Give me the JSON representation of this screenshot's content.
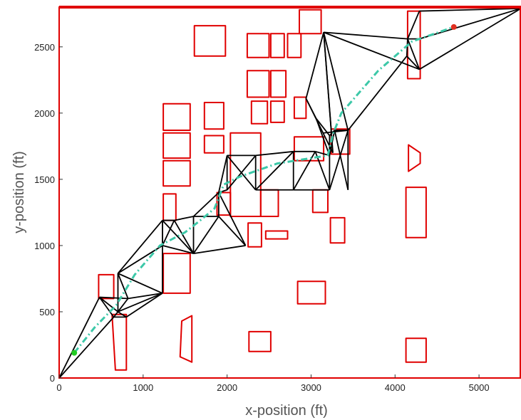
{
  "chart_data": {
    "type": "scatter",
    "title": "",
    "xlabel": "x-position (ft)",
    "ylabel": "y-position (ft)",
    "xlim": [
      0,
      5500
    ],
    "ylim": [
      0,
      2800
    ],
    "xticks": [
      0,
      1000,
      2000,
      3000,
      4000,
      5000
    ],
    "yticks": [
      0,
      500,
      1000,
      1500,
      2000,
      2500
    ],
    "grid": false,
    "colors": {
      "obstacles": "#e00000",
      "roadmap": "#000000",
      "path": "#3cc8a8",
      "start": "#22cc22",
      "goal": "#e03020",
      "frame": "#e00000"
    },
    "start": [
      180,
      190
    ],
    "goal": [
      4700,
      2650
    ],
    "obstacles": [
      [
        [
          470,
          780
        ],
        [
          650,
          780
        ],
        [
          650,
          600
        ],
        [
          470,
          600
        ]
      ],
      [
        [
          630,
          480
        ],
        [
          800,
          480
        ],
        [
          800,
          60
        ],
        [
          670,
          60
        ]
      ],
      [
        [
          1240,
          2070
        ],
        [
          1560,
          2070
        ],
        [
          1560,
          1870
        ],
        [
          1240,
          1870
        ]
      ],
      [
        [
          1240,
          1850
        ],
        [
          1560,
          1850
        ],
        [
          1560,
          1660
        ],
        [
          1240,
          1660
        ]
      ],
      [
        [
          1240,
          1640
        ],
        [
          1560,
          1640
        ],
        [
          1560,
          1450
        ],
        [
          1240,
          1450
        ]
      ],
      [
        [
          1240,
          1390
        ],
        [
          1390,
          1390
        ],
        [
          1390,
          1190
        ],
        [
          1240,
          1190
        ]
      ],
      [
        [
          1240,
          940
        ],
        [
          1560,
          940
        ],
        [
          1560,
          640
        ],
        [
          1240,
          640
        ]
      ],
      [
        [
          1460,
          430
        ],
        [
          1580,
          470
        ],
        [
          1580,
          120
        ],
        [
          1440,
          160
        ]
      ],
      [
        [
          1610,
          2660
        ],
        [
          1980,
          2660
        ],
        [
          1980,
          2430
        ],
        [
          1610,
          2430
        ]
      ],
      [
        [
          1730,
          2080
        ],
        [
          1960,
          2080
        ],
        [
          1960,
          1880
        ],
        [
          1730,
          1880
        ]
      ],
      [
        [
          1730,
          1830
        ],
        [
          1960,
          1830
        ],
        [
          1960,
          1700
        ],
        [
          1730,
          1700
        ]
      ],
      [
        [
          1880,
          1400
        ],
        [
          2040,
          1400
        ],
        [
          2040,
          1230
        ],
        [
          1880,
          1230
        ]
      ],
      [
        [
          2040,
          1850
        ],
        [
          2400,
          1850
        ],
        [
          2400,
          1220
        ],
        [
          2040,
          1220
        ]
      ],
      [
        [
          2240,
          2600
        ],
        [
          2500,
          2600
        ],
        [
          2500,
          2420
        ],
        [
          2240,
          2420
        ]
      ],
      [
        [
          2520,
          2600
        ],
        [
          2680,
          2600
        ],
        [
          2680,
          2420
        ],
        [
          2520,
          2420
        ]
      ],
      [
        [
          2720,
          2600
        ],
        [
          2880,
          2600
        ],
        [
          2880,
          2420
        ],
        [
          2720,
          2420
        ]
      ],
      [
        [
          2240,
          2320
        ],
        [
          2500,
          2320
        ],
        [
          2500,
          2120
        ],
        [
          2240,
          2120
        ]
      ],
      [
        [
          2520,
          2320
        ],
        [
          2700,
          2320
        ],
        [
          2700,
          2120
        ],
        [
          2520,
          2120
        ]
      ],
      [
        [
          2290,
          2090
        ],
        [
          2480,
          2090
        ],
        [
          2480,
          1920
        ],
        [
          2290,
          1920
        ]
      ],
      [
        [
          2520,
          2090
        ],
        [
          2680,
          2090
        ],
        [
          2680,
          1930
        ],
        [
          2520,
          1930
        ]
      ],
      [
        [
          2400,
          1420
        ],
        [
          2610,
          1420
        ],
        [
          2610,
          1220
        ],
        [
          2400,
          1220
        ]
      ],
      [
        [
          2250,
          1170
        ],
        [
          2410,
          1170
        ],
        [
          2410,
          990
        ],
        [
          2250,
          990
        ]
      ],
      [
        [
          2460,
          1110
        ],
        [
          2720,
          1110
        ],
        [
          2720,
          1050
        ],
        [
          2460,
          1050
        ]
      ],
      [
        [
          2260,
          350
        ],
        [
          2520,
          350
        ],
        [
          2520,
          200
        ],
        [
          2260,
          200
        ]
      ],
      [
        [
          2860,
          2780
        ],
        [
          3120,
          2780
        ],
        [
          3120,
          2600
        ],
        [
          2860,
          2600
        ]
      ],
      [
        [
          2800,
          2120
        ],
        [
          2940,
          2120
        ],
        [
          2940,
          1960
        ],
        [
          2800,
          1960
        ]
      ],
      [
        [
          2800,
          1820
        ],
        [
          3150,
          1820
        ],
        [
          3150,
          1640
        ],
        [
          2800,
          1640
        ]
      ],
      [
        [
          3020,
          1420
        ],
        [
          3200,
          1420
        ],
        [
          3200,
          1250
        ],
        [
          3020,
          1250
        ]
      ],
      [
        [
          3240,
          1880
        ],
        [
          3460,
          1880
        ],
        [
          3460,
          1690
        ],
        [
          3240,
          1690
        ]
      ],
      [
        [
          3230,
          1210
        ],
        [
          3400,
          1210
        ],
        [
          3400,
          1020
        ],
        [
          3230,
          1020
        ]
      ],
      [
        [
          2840,
          730
        ],
        [
          3170,
          730
        ],
        [
          3170,
          560
        ],
        [
          2840,
          560
        ]
      ],
      [
        [
          4150,
          2770
        ],
        [
          4300,
          2770
        ],
        [
          4300,
          2260
        ],
        [
          4150,
          2260
        ]
      ],
      [
        [
          4160,
          1760
        ],
        [
          4300,
          1700
        ],
        [
          4300,
          1620
        ],
        [
          4160,
          1560
        ]
      ],
      [
        [
          4130,
          1440
        ],
        [
          4370,
          1440
        ],
        [
          4370,
          1060
        ],
        [
          4130,
          1060
        ]
      ],
      [
        [
          4130,
          300
        ],
        [
          4370,
          300
        ],
        [
          4370,
          120
        ],
        [
          4130,
          120
        ]
      ]
    ],
    "edges": [
      [
        [
          0,
          0
        ],
        [
          480,
          610
        ]
      ],
      [
        [
          0,
          0
        ],
        [
          650,
          460
        ]
      ],
      [
        [
          480,
          610
        ],
        [
          650,
          460
        ]
      ],
      [
        [
          480,
          610
        ],
        [
          700,
          500
        ]
      ],
      [
        [
          480,
          610
        ],
        [
          820,
          600
        ]
      ],
      [
        [
          650,
          460
        ],
        [
          800,
          460
        ]
      ],
      [
        [
          650,
          460
        ],
        [
          700,
          500
        ]
      ],
      [
        [
          700,
          500
        ],
        [
          800,
          460
        ]
      ],
      [
        [
          700,
          500
        ],
        [
          700,
          790
        ]
      ],
      [
        [
          700,
          500
        ],
        [
          820,
          600
        ]
      ],
      [
        [
          700,
          500
        ],
        [
          1230,
          640
        ]
      ],
      [
        [
          700,
          790
        ],
        [
          820,
          600
        ]
      ],
      [
        [
          700,
          790
        ],
        [
          1230,
          640
        ]
      ],
      [
        [
          700,
          790
        ],
        [
          1230,
          1000
        ]
      ],
      [
        [
          700,
          790
        ],
        [
          1230,
          1190
        ]
      ],
      [
        [
          800,
          460
        ],
        [
          1230,
          640
        ]
      ],
      [
        [
          820,
          600
        ],
        [
          1230,
          640
        ]
      ],
      [
        [
          1230,
          640
        ],
        [
          1230,
          1190
        ]
      ],
      [
        [
          1230,
          1000
        ],
        [
          1230,
          1190
        ]
      ],
      [
        [
          1230,
          1000
        ],
        [
          1370,
          1190
        ]
      ],
      [
        [
          1230,
          1000
        ],
        [
          1600,
          940
        ]
      ],
      [
        [
          1230,
          1190
        ],
        [
          1370,
          1190
        ]
      ],
      [
        [
          1230,
          1190
        ],
        [
          1600,
          940
        ]
      ],
      [
        [
          1370,
          1190
        ],
        [
          1600,
          940
        ]
      ],
      [
        [
          1370,
          1190
        ],
        [
          1600,
          1220
        ]
      ],
      [
        [
          1600,
          940
        ],
        [
          1600,
          1220
        ]
      ],
      [
        [
          1600,
          940
        ],
        [
          1900,
          1220
        ]
      ],
      [
        [
          1600,
          940
        ],
        [
          2220,
          1000
        ]
      ],
      [
        [
          1600,
          1220
        ],
        [
          1900,
          1220
        ]
      ],
      [
        [
          1600,
          1220
        ],
        [
          1900,
          1400
        ]
      ],
      [
        [
          1900,
          1220
        ],
        [
          1900,
          1400
        ]
      ],
      [
        [
          1900,
          1220
        ],
        [
          2220,
          1000
        ]
      ],
      [
        [
          1900,
          1400
        ],
        [
          2220,
          1000
        ]
      ],
      [
        [
          1900,
          1400
        ],
        [
          2000,
          1420
        ]
      ],
      [
        [
          1900,
          1400
        ],
        [
          2000,
          1680
        ]
      ],
      [
        [
          2000,
          1420
        ],
        [
          2000,
          1680
        ]
      ],
      [
        [
          2000,
          1420
        ],
        [
          2340,
          1680
        ]
      ],
      [
        [
          2000,
          1680
        ],
        [
          2340,
          1680
        ]
      ],
      [
        [
          2000,
          1680
        ],
        [
          2340,
          1420
        ]
      ],
      [
        [
          2340,
          1420
        ],
        [
          2340,
          1680
        ]
      ],
      [
        [
          2340,
          1420
        ],
        [
          2790,
          1420
        ]
      ],
      [
        [
          2340,
          1420
        ],
        [
          2790,
          1710
        ]
      ],
      [
        [
          2340,
          1680
        ],
        [
          2790,
          1710
        ]
      ],
      [
        [
          2790,
          1420
        ],
        [
          2790,
          1710
        ]
      ],
      [
        [
          2790,
          1420
        ],
        [
          3050,
          1710
        ]
      ],
      [
        [
          2790,
          1420
        ],
        [
          3220,
          1420
        ]
      ],
      [
        [
          2790,
          1710
        ],
        [
          3050,
          1710
        ]
      ],
      [
        [
          3050,
          1710
        ],
        [
          3220,
          1420
        ]
      ],
      [
        [
          3050,
          1710
        ],
        [
          3220,
          1680
        ]
      ],
      [
        [
          3220,
          1420
        ],
        [
          3220,
          1680
        ]
      ],
      [
        [
          3220,
          1680
        ],
        [
          3280,
          1870
        ]
      ],
      [
        [
          3220,
          1680
        ],
        [
          3220,
          1830
        ]
      ],
      [
        [
          3220,
          1680
        ],
        [
          3060,
          1960
        ]
      ],
      [
        [
          3220,
          1420
        ],
        [
          3440,
          1870
        ]
      ],
      [
        [
          3280,
          1870
        ],
        [
          3440,
          1870
        ]
      ],
      [
        [
          3280,
          1870
        ],
        [
          3440,
          1420
        ]
      ],
      [
        [
          3440,
          1420
        ],
        [
          3440,
          1870
        ]
      ],
      [
        [
          3220,
          1830
        ],
        [
          3280,
          1870
        ]
      ],
      [
        [
          3220,
          1830
        ],
        [
          3060,
          1960
        ]
      ],
      [
        [
          3060,
          1960
        ],
        [
          2940,
          2110
        ]
      ],
      [
        [
          2940,
          2110
        ],
        [
          3260,
          1700
        ]
      ],
      [
        [
          2940,
          2110
        ],
        [
          3150,
          2610
        ]
      ],
      [
        [
          3150,
          2610
        ],
        [
          3240,
          1870
        ]
      ],
      [
        [
          3150,
          2610
        ],
        [
          3440,
          1870
        ]
      ],
      [
        [
          3150,
          2610
        ],
        [
          3260,
          1700
        ]
      ],
      [
        [
          3150,
          2610
        ],
        [
          4150,
          2560
        ]
      ],
      [
        [
          3150,
          2610
        ],
        [
          4290,
          2330
        ]
      ],
      [
        [
          3440,
          1870
        ],
        [
          4140,
          2430
        ]
      ],
      [
        [
          4140,
          2430
        ],
        [
          4150,
          2560
        ]
      ],
      [
        [
          4140,
          2430
        ],
        [
          4290,
          2330
        ]
      ],
      [
        [
          4150,
          2560
        ],
        [
          4290,
          2330
        ]
      ],
      [
        [
          4150,
          2560
        ],
        [
          4290,
          2560
        ]
      ],
      [
        [
          4150,
          2560
        ],
        [
          4290,
          2770
        ]
      ],
      [
        [
          4290,
          2560
        ],
        [
          5500,
          2790
        ]
      ],
      [
        [
          4290,
          2330
        ],
        [
          5500,
          2790
        ]
      ],
      [
        [
          4290,
          2770
        ],
        [
          5500,
          2790
        ]
      ],
      [
        [
          3440,
          1870
        ],
        [
          3150,
          1850
        ]
      ]
    ],
    "path": [
      [
        180,
        190
      ],
      [
        420,
        380
      ],
      [
        680,
        550
      ],
      [
        900,
        780
      ],
      [
        1200,
        1000
      ],
      [
        1500,
        1100
      ],
      [
        1700,
        1200
      ],
      [
        1850,
        1280
      ],
      [
        1960,
        1460
      ],
      [
        2150,
        1520
      ],
      [
        2600,
        1620
      ],
      [
        3200,
        1680
      ],
      [
        3260,
        1840
      ],
      [
        3360,
        2000
      ],
      [
        3800,
        2320
      ],
      [
        4200,
        2540
      ],
      [
        4700,
        2650
      ]
    ]
  }
}
